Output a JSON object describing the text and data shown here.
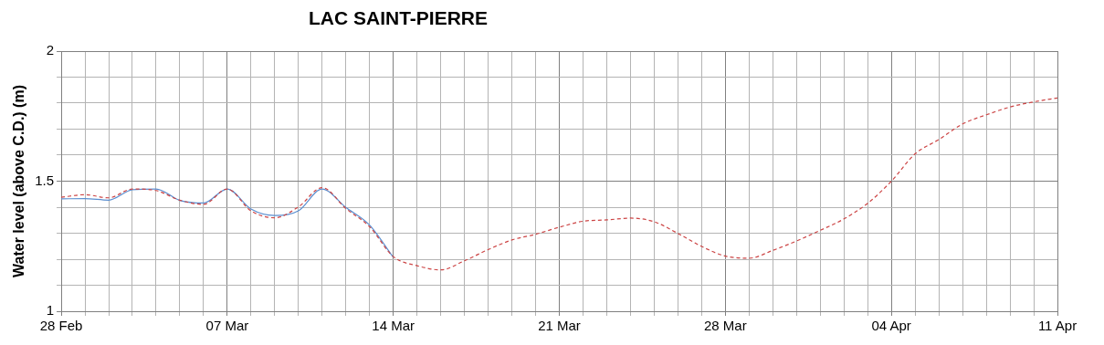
{
  "chart_data": {
    "type": "line",
    "title": "LAC SAINT-PIERRE",
    "ylabel": "Water level (above C.D.) (m)",
    "xlim": [
      "--02-28",
      "--04-11"
    ],
    "xticks": [
      {
        "value": "--02-28",
        "label": "28 Feb"
      },
      {
        "value": "--03-01",
        "label": null
      },
      {
        "value": "--03-02",
        "label": null
      },
      {
        "value": "--03-03",
        "label": null
      },
      {
        "value": "--03-04",
        "label": null
      },
      {
        "value": "--03-05",
        "label": null
      },
      {
        "value": "--03-06",
        "label": null
      },
      {
        "value": "--03-07",
        "label": "07 Mar"
      },
      {
        "value": "--03-08",
        "label": null
      },
      {
        "value": "--03-09",
        "label": null
      },
      {
        "value": "--03-10",
        "label": null
      },
      {
        "value": "--03-11",
        "label": null
      },
      {
        "value": "--03-12",
        "label": null
      },
      {
        "value": "--03-13",
        "label": null
      },
      {
        "value": "--03-14",
        "label": "14 Mar"
      },
      {
        "value": "--03-15",
        "label": null
      },
      {
        "value": "--03-16",
        "label": null
      },
      {
        "value": "--03-17",
        "label": null
      },
      {
        "value": "--03-18",
        "label": null
      },
      {
        "value": "--03-19",
        "label": null
      },
      {
        "value": "--03-20",
        "label": null
      },
      {
        "value": "--03-21",
        "label": "21 Mar"
      },
      {
        "value": "--03-22",
        "label": null
      },
      {
        "value": "--03-23",
        "label": null
      },
      {
        "value": "--03-24",
        "label": null
      },
      {
        "value": "--03-25",
        "label": null
      },
      {
        "value": "--03-26",
        "label": null
      },
      {
        "value": "--03-27",
        "label": null
      },
      {
        "value": "--03-28",
        "label": "28 Mar"
      },
      {
        "value": "--03-29",
        "label": null
      },
      {
        "value": "--03-30",
        "label": null
      },
      {
        "value": "--03-31",
        "label": null
      },
      {
        "value": "--04-01",
        "label": null
      },
      {
        "value": "--04-02",
        "label": null
      },
      {
        "value": "--04-03",
        "label": null
      },
      {
        "value": "--04-04",
        "label": "04 Apr"
      },
      {
        "value": "--04-05",
        "label": null
      },
      {
        "value": "--04-06",
        "label": null
      },
      {
        "value": "--04-07",
        "label": null
      },
      {
        "value": "--04-08",
        "label": null
      },
      {
        "value": "--04-09",
        "label": null
      },
      {
        "value": "--04-10",
        "label": null
      },
      {
        "value": "--04-11",
        "label": "11 Apr"
      }
    ],
    "ylim": [
      1,
      2
    ],
    "yticks": [
      1,
      {
        "value": 1.1,
        "label": null
      },
      {
        "value": 1.2,
        "label": null
      },
      {
        "value": 1.3,
        "label": null
      },
      {
        "value": 1.4,
        "label": null
      },
      1.5,
      {
        "value": 1.6,
        "label": null
      },
      {
        "value": 1.7,
        "label": null
      },
      {
        "value": 1.8,
        "label": null
      },
      {
        "value": 1.9,
        "label": null
      },
      2
    ],
    "grid": true,
    "legend": false,
    "marker": "none",
    "series": [
      {
        "color": "#cc4444",
        "line_style": "dashed",
        "x": [
          "--02-28",
          "--03-01",
          "--03-02",
          "--03-03",
          "--03-04",
          "--03-05",
          "--03-06",
          "--03-07",
          "--03-08",
          "--03-09",
          "--03-10",
          "--03-11",
          "--03-12",
          "--03-13",
          "--03-14",
          "--03-15",
          "--03-16",
          "--03-17",
          "--03-18",
          "--03-19",
          "--03-20",
          "--03-21",
          "--03-22",
          "--03-23",
          "--03-24",
          "--03-25",
          "--03-26",
          "--03-27",
          "--03-28",
          "--03-29",
          "--03-30",
          "--03-31",
          "--04-01",
          "--04-02",
          "--04-03",
          "--04-04",
          "--04-05",
          "--04-06",
          "--04-07",
          "--04-08",
          "--04-09",
          "--04-10",
          "--04-11"
        ],
        "values": [
          1.438,
          1.448,
          1.436,
          1.47,
          1.464,
          1.427,
          1.411,
          1.47,
          1.386,
          1.359,
          1.401,
          1.475,
          1.395,
          1.325,
          1.21,
          1.175,
          1.159,
          1.194,
          1.237,
          1.274,
          1.296,
          1.323,
          1.346,
          1.351,
          1.358,
          1.344,
          1.299,
          1.249,
          1.212,
          1.204,
          1.234,
          1.27,
          1.311,
          1.355,
          1.415,
          1.5,
          1.605,
          1.66,
          1.72,
          1.755,
          1.785,
          1.805,
          1.82
        ]
      },
      {
        "color": "#5b8fd0",
        "line_style": "solid",
        "x": [
          "--02-28",
          "--03-01",
          "--03-02",
          "--03-03",
          "--03-04",
          "--03-05",
          "--03-06",
          "--03-07",
          "--03-08",
          "--03-09",
          "--03-10",
          "--03-11",
          "--03-12",
          "--03-13",
          "--03-14"
        ],
        "values": [
          1.432,
          1.433,
          1.427,
          1.467,
          1.47,
          1.426,
          1.416,
          1.47,
          1.393,
          1.368,
          1.386,
          1.47,
          1.399,
          1.331,
          1.207
        ]
      }
    ]
  }
}
